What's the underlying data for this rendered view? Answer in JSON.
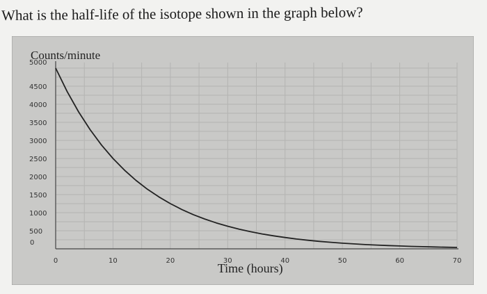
{
  "question": {
    "text": "What is the half-life of the isotope shown in the graph below?"
  },
  "chart_data": {
    "type": "line",
    "title": "",
    "ylabel": "Counts/minute",
    "xlabel": "Time (hours)",
    "xlim": [
      0,
      70
    ],
    "ylim": [
      0,
      5000
    ],
    "xticks": [
      0,
      10,
      20,
      30,
      40,
      50,
      60,
      70
    ],
    "yticks": [
      0,
      500,
      1000,
      1500,
      2000,
      2500,
      3000,
      3500,
      4000,
      4500,
      5000
    ],
    "grid": true,
    "series": [
      {
        "x": [
          0,
          2,
          4,
          6,
          8,
          10,
          12,
          14,
          16,
          18,
          20,
          22,
          24,
          26,
          28,
          30,
          32,
          34,
          36,
          38,
          40,
          42,
          44,
          46,
          48,
          50,
          52,
          54,
          56,
          58,
          60,
          62,
          64,
          66,
          68,
          70
        ],
        "values": [
          5000,
          4352,
          3789,
          3299,
          2872,
          2500,
          2176,
          1895,
          1649,
          1436,
          1250,
          1088,
          947,
          825,
          718,
          625,
          544,
          474,
          412,
          359,
          313,
          272,
          237,
          206,
          180,
          156,
          136,
          118,
          103,
          90,
          78,
          68,
          59,
          52,
          45,
          39
        ],
        "color": "#222222"
      }
    ],
    "colors": {
      "plot_background": "#c9c9c7",
      "grid": "#b4b4b2",
      "line": "#222222"
    }
  }
}
